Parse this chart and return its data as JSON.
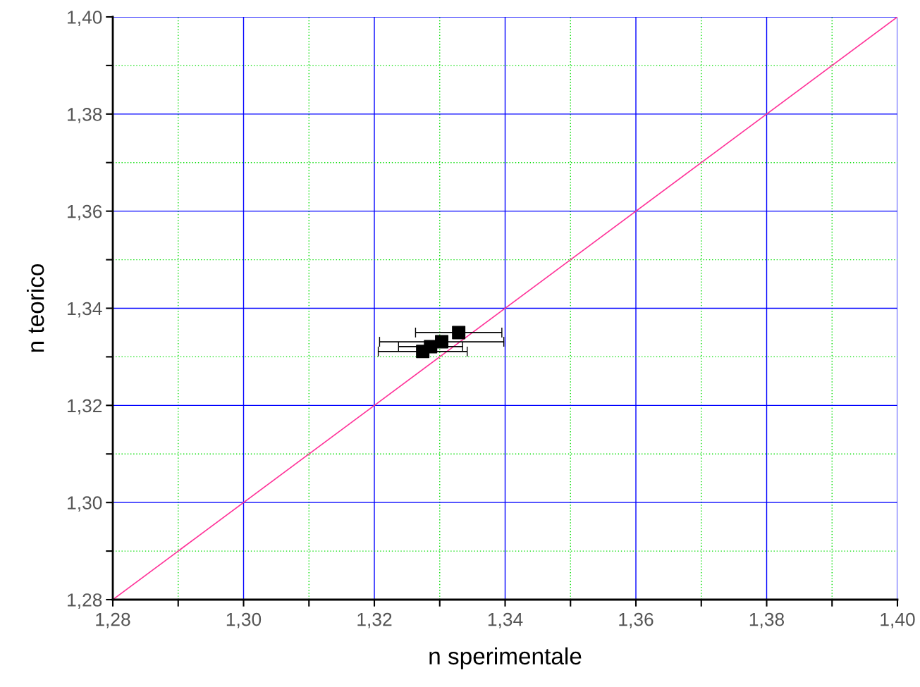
{
  "chart_data": {
    "type": "scatter",
    "xlabel": "n sperimentale",
    "ylabel": "n teorico",
    "xlim": [
      1.28,
      1.4
    ],
    "ylim": [
      1.28,
      1.4
    ],
    "xticks": [
      {
        "value": 1.28,
        "label": "1,28"
      },
      {
        "value": 1.29,
        "label": null
      },
      {
        "value": 1.3,
        "label": "1,30"
      },
      {
        "value": 1.31,
        "label": null
      },
      {
        "value": 1.32,
        "label": "1,32"
      },
      {
        "value": 1.33,
        "label": null
      },
      {
        "value": 1.34,
        "label": "1,34"
      },
      {
        "value": 1.35,
        "label": null
      },
      {
        "value": 1.36,
        "label": "1,36"
      },
      {
        "value": 1.37,
        "label": null
      },
      {
        "value": 1.38,
        "label": "1,38"
      },
      {
        "value": 1.39,
        "label": null
      },
      {
        "value": 1.4,
        "label": "1,40"
      }
    ],
    "yticks": [
      {
        "value": 1.28,
        "label": "1,28"
      },
      {
        "value": 1.29,
        "label": null
      },
      {
        "value": 1.3,
        "label": "1,30"
      },
      {
        "value": 1.31,
        "label": null
      },
      {
        "value": 1.32,
        "label": "1,32"
      },
      {
        "value": 1.33,
        "label": null
      },
      {
        "value": 1.34,
        "label": "1,34"
      },
      {
        "value": 1.35,
        "label": null
      },
      {
        "value": 1.36,
        "label": "1,36"
      },
      {
        "value": 1.37,
        "label": null
      },
      {
        "value": 1.38,
        "label": "1,38"
      },
      {
        "value": 1.39,
        "label": null
      },
      {
        "value": 1.4,
        "label": "1,40"
      }
    ],
    "grid": true,
    "marker": "square",
    "series": [
      {
        "type": "line",
        "color": "#ff3399",
        "marker": "none",
        "x": [
          1.28,
          1.4
        ],
        "values": [
          1.28,
          1.4
        ]
      },
      {
        "color": "#000000",
        "x": [
          1.3274,
          1.3286,
          1.3303,
          1.3329
        ],
        "values": [
          1.3311,
          1.3321,
          1.3331,
          1.335
        ],
        "xerrors": [
          0.0068,
          0.0049,
          0.0095,
          0.0066
        ]
      }
    ]
  }
}
